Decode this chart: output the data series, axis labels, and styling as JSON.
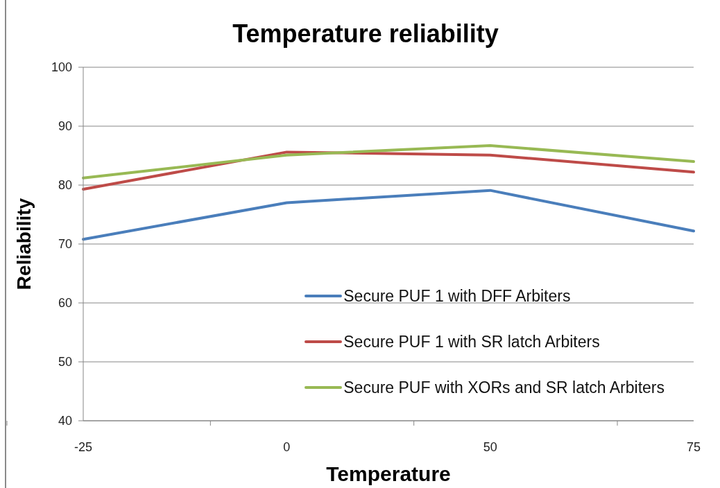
{
  "chart_data": {
    "type": "line",
    "title": "Temperature reliability",
    "xlabel": "Temperature",
    "ylabel": "Reliability",
    "categories": [
      "-25",
      "0",
      "50",
      "75"
    ],
    "series": [
      {
        "name": "Secure PUF 1 with DFF Arbiters",
        "color": "#4a7ebb",
        "values": [
          70.8,
          77.0,
          79.1,
          72.2
        ]
      },
      {
        "name": "Secure PUF 1 with SR latch Arbiters",
        "color": "#be4b48",
        "values": [
          79.3,
          85.6,
          85.1,
          82.2
        ]
      },
      {
        "name": "Secure PUF with XORs and SR latch Arbiters",
        "color": "#98b954",
        "values": [
          81.2,
          85.1,
          86.7,
          84.0
        ]
      }
    ],
    "ylim": [
      40,
      100
    ],
    "yticks": [
      40,
      50,
      60,
      70,
      80,
      90,
      100
    ],
    "grid": "y",
    "legend": "bottom right",
    "marker": "none",
    "line_style": "solid"
  }
}
